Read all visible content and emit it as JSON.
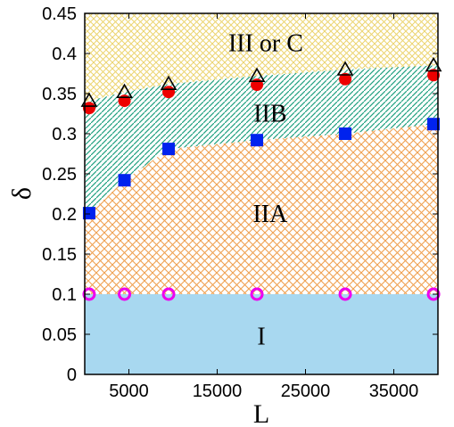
{
  "chart_data": {
    "type": "scatter",
    "xlabel": "L",
    "ylabel": "δ",
    "xlim": [
      0,
      40000
    ],
    "ylim": [
      0,
      0.45
    ],
    "x_ticks": [
      5000,
      15000,
      25000,
      35000
    ],
    "x_tick_labels": [
      "5000",
      "15000",
      "25000",
      "35000"
    ],
    "y_ticks": [
      0,
      0.05,
      0.1,
      0.15,
      0.2,
      0.25,
      0.3,
      0.35,
      0.4,
      0.45
    ],
    "y_tick_labels": [
      "0",
      "0.05",
      "0.1",
      "0.15",
      "0.2",
      "0.25",
      "0.3",
      "0.35",
      "0.4",
      "0.45"
    ],
    "grid": false,
    "legend": "none",
    "x": [
      500,
      4500,
      9500,
      19500,
      29500,
      39500
    ],
    "series": [
      {
        "marker": "open-circle",
        "color": "#ee00ee",
        "values": [
          0.1,
          0.1,
          0.1,
          0.1,
          0.1,
          0.1
        ]
      },
      {
        "marker": "filled-square",
        "color": "#0022ee",
        "values": [
          0.201,
          0.242,
          0.281,
          0.292,
          0.3,
          0.312
        ]
      },
      {
        "marker": "filled-circle",
        "color": "#ee0000",
        "values": [
          0.332,
          0.341,
          0.352,
          0.361,
          0.368,
          0.373
        ]
      },
      {
        "marker": "open-triangle",
        "color": "#000000",
        "values": [
          0.341,
          0.352,
          0.362,
          0.372,
          0.38,
          0.385
        ]
      }
    ],
    "regions": [
      {
        "label": "I",
        "color": "#a8d8f0",
        "fill": "solid",
        "label_at": [
          20000,
          0.047
        ]
      },
      {
        "label": "IIA",
        "color": "#f0a050",
        "fill": "crosshatch",
        "label_at": [
          21000,
          0.2
        ]
      },
      {
        "label": "IIB",
        "color": "#20a080",
        "fill": "diagonal",
        "label_at": [
          21000,
          0.325
        ]
      },
      {
        "label": "III or C",
        "color": "#f0d860",
        "fill": "crosshatch",
        "label_at": [
          20500,
          0.413
        ]
      }
    ]
  }
}
